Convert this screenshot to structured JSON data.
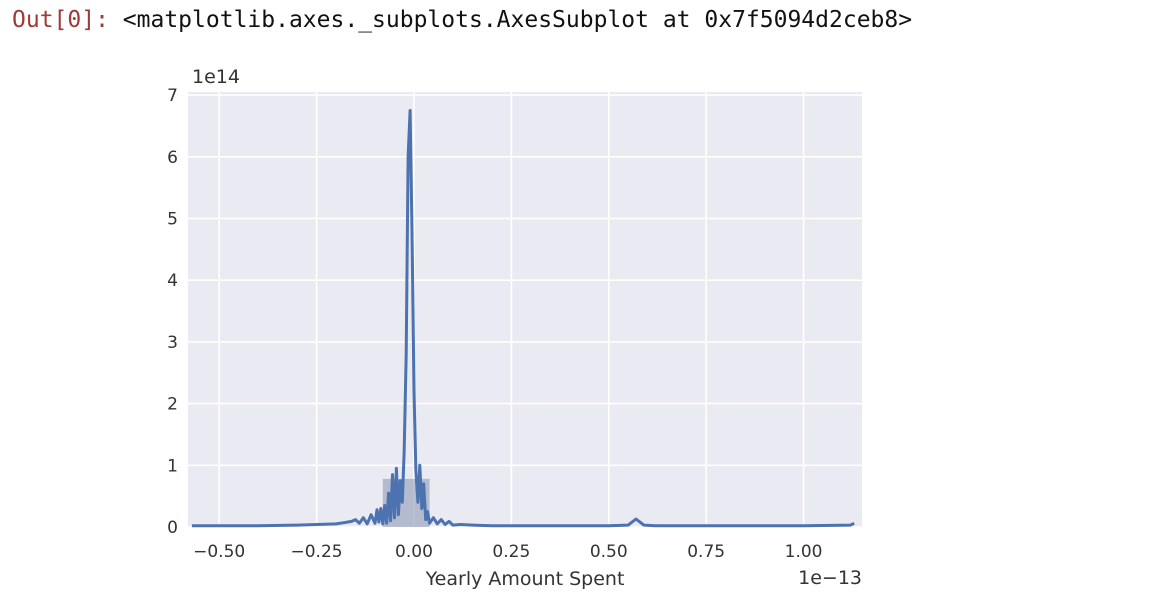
{
  "output": {
    "prompt": "Out[0]:",
    "repr": "<matplotlib.axes._subplots.AxesSubplot at 0x7f5094d2ceb8>"
  },
  "colors": {
    "axes_bg": "#eaeaf2",
    "grid": "#ffffff",
    "line": "#4c72b0",
    "hist": "#9ea6bf"
  },
  "chart_data": {
    "type": "line",
    "title": "",
    "xlabel": "Yearly Amount Spent",
    "ylabel": "",
    "x_scale_label": "1e−13",
    "y_scale_label": "1e14",
    "xlim": [
      -0.58,
      1.15
    ],
    "ylim": [
      0,
      7.05
    ],
    "x_ticks": [
      -0.5,
      -0.25,
      0.0,
      0.25,
      0.5,
      0.75,
      1.0
    ],
    "x_tick_labels": [
      "−0.50",
      "−0.25",
      "0.00",
      "0.25",
      "0.50",
      "0.75",
      "1.00"
    ],
    "y_ticks": [
      0,
      1,
      2,
      3,
      4,
      5,
      6,
      7
    ],
    "y_tick_labels": [
      "0",
      "1",
      "2",
      "3",
      "4",
      "5",
      "6",
      "7"
    ],
    "grid": true,
    "histogram": {
      "bins": [
        {
          "x0": -0.08,
          "x1": 0.04,
          "height": 0.78
        }
      ]
    },
    "series": [
      {
        "x": [
          -0.57,
          -0.4,
          -0.3,
          -0.25,
          -0.2,
          -0.18,
          -0.16,
          -0.15,
          -0.14,
          -0.13,
          -0.12,
          -0.11,
          -0.1,
          -0.095,
          -0.09,
          -0.085,
          -0.08,
          -0.075,
          -0.07,
          -0.065,
          -0.06,
          -0.055,
          -0.05,
          -0.045,
          -0.04,
          -0.035,
          -0.03,
          -0.025,
          -0.02,
          -0.015,
          -0.01,
          -0.005,
          0.0,
          0.005,
          0.01,
          0.015,
          0.02,
          0.025,
          0.03,
          0.035,
          0.04,
          0.05,
          0.06,
          0.07,
          0.08,
          0.09,
          0.1,
          0.12,
          0.15,
          0.2,
          0.3,
          0.5,
          0.55,
          0.57,
          0.59,
          0.62,
          0.8,
          1.0,
          1.12,
          1.13
        ],
        "y": [
          0.02,
          0.02,
          0.03,
          0.04,
          0.05,
          0.07,
          0.09,
          0.12,
          0.06,
          0.15,
          0.05,
          0.2,
          0.06,
          0.28,
          0.08,
          0.3,
          0.05,
          0.35,
          0.06,
          0.55,
          0.1,
          0.85,
          0.15,
          0.95,
          0.2,
          0.75,
          0.4,
          1.25,
          2.8,
          6.0,
          6.75,
          4.8,
          2.2,
          0.9,
          0.4,
          1.0,
          0.3,
          0.7,
          0.12,
          0.25,
          0.06,
          0.15,
          0.05,
          0.12,
          0.04,
          0.09,
          0.03,
          0.04,
          0.03,
          0.02,
          0.02,
          0.02,
          0.03,
          0.13,
          0.03,
          0.02,
          0.02,
          0.02,
          0.03,
          0.06
        ]
      }
    ]
  }
}
